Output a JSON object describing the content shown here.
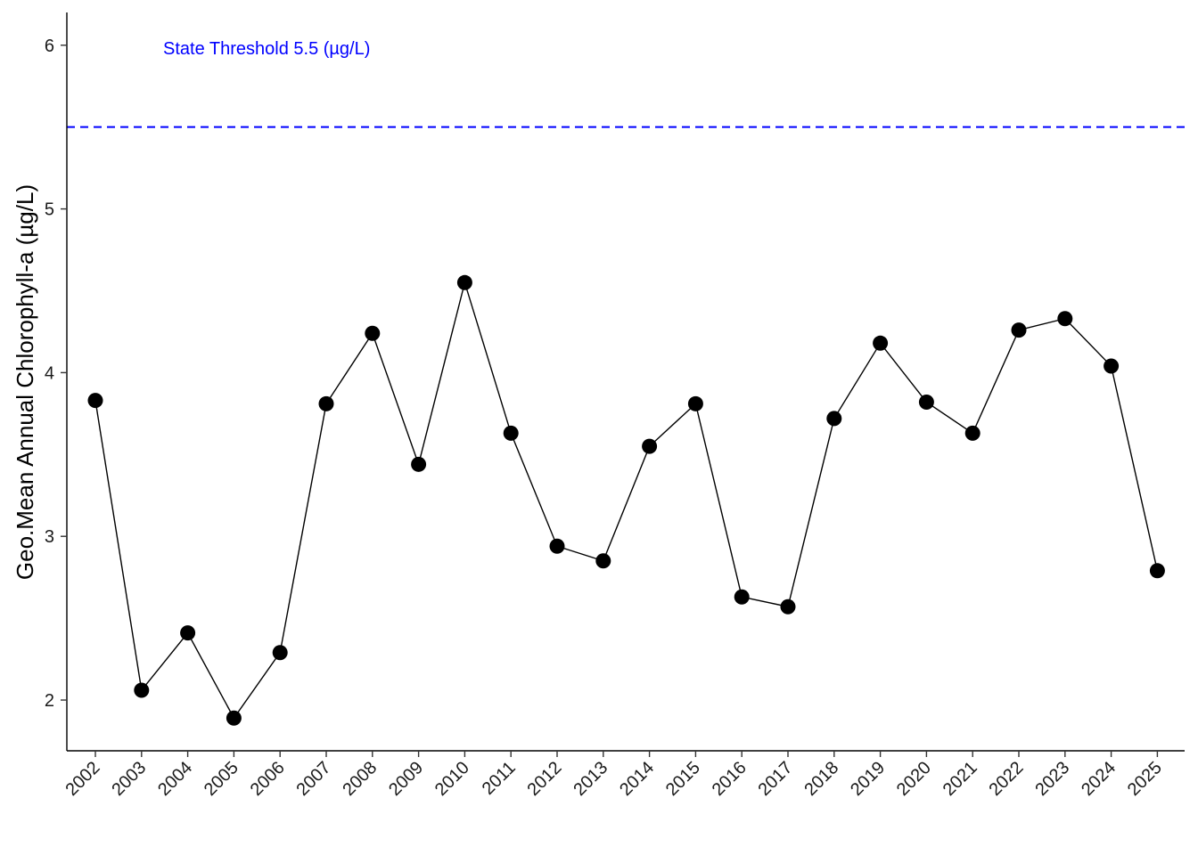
{
  "chart_data": {
    "type": "line",
    "title": "",
    "xlabel": "",
    "ylabel": "Geo.Mean Annual Chlorophyll-a (µg/L)",
    "categories": [
      "2002",
      "2003",
      "2004",
      "2005",
      "2006",
      "2007",
      "2008",
      "2009",
      "2010",
      "2011",
      "2012",
      "2013",
      "2014",
      "2015",
      "2016",
      "2017",
      "2018",
      "2019",
      "2020",
      "2021",
      "2022",
      "2023",
      "2024",
      "2025"
    ],
    "values": [
      3.83,
      2.06,
      2.41,
      1.89,
      2.29,
      3.81,
      4.24,
      3.44,
      4.55,
      3.63,
      2.94,
      2.85,
      3.55,
      3.81,
      2.63,
      2.57,
      3.72,
      4.18,
      3.82,
      3.63,
      4.26,
      4.33,
      4.04,
      2.79
    ],
    "ylim": [
      1.69,
      6.2
    ],
    "yticks": [
      2,
      3,
      4,
      5,
      6
    ],
    "grid": false,
    "legend": "none",
    "threshold": {
      "value": 5.5,
      "label": "State Threshold 5.5 (µg/L)",
      "color": "#0000ff",
      "style": "dashed"
    },
    "line_color": "#000000",
    "point_color": "#000000"
  }
}
